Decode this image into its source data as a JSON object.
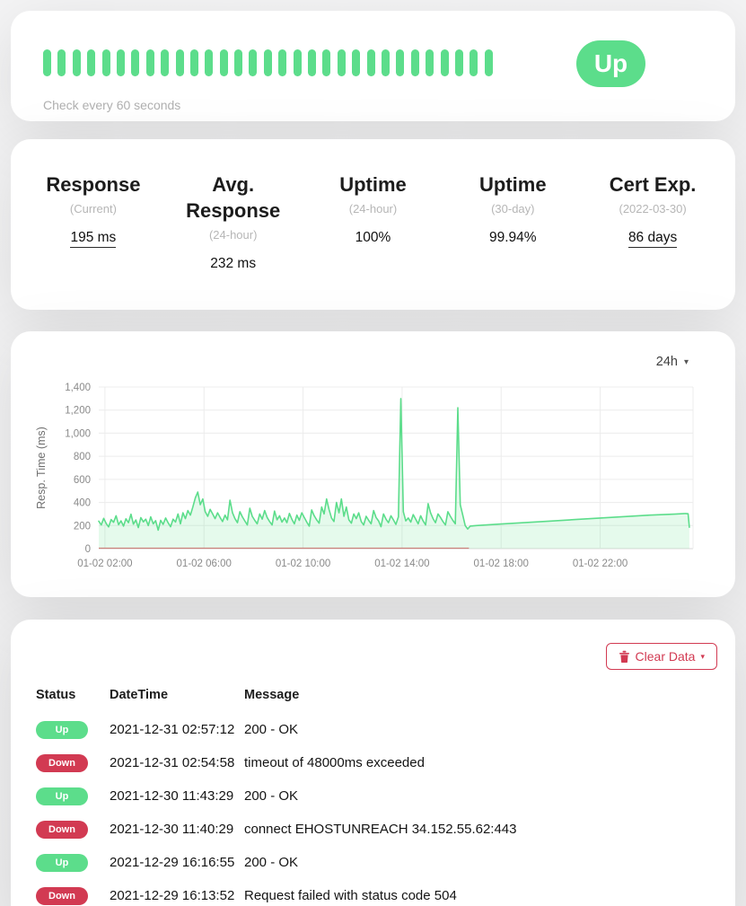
{
  "colors": {
    "up": "#5cdd8b",
    "down": "#d23a52",
    "chart_line": "#5cdd8b",
    "chart_fill": "rgba(92,221,139,0.16)",
    "down_line": "#c75f5c",
    "grid": "#ececec",
    "tick_text": "#8a8a8a"
  },
  "monitor": {
    "status_label": "Up",
    "check_interval_text": "Check every 60 seconds",
    "heartbeats": [
      "up",
      "up",
      "up",
      "up",
      "up",
      "up",
      "up",
      "up",
      "up",
      "up",
      "up",
      "up",
      "up",
      "up",
      "up",
      "up",
      "up",
      "up",
      "up",
      "up",
      "up",
      "up",
      "up",
      "up",
      "up",
      "up",
      "up",
      "up",
      "up",
      "up",
      "up"
    ]
  },
  "stats": {
    "items": [
      {
        "title": "Response",
        "subtitle": "(Current)",
        "value": "195 ms",
        "underline": true
      },
      {
        "title": "Avg. Response",
        "subtitle": "(24-hour)",
        "value": "232 ms",
        "underline": false
      },
      {
        "title": "Uptime",
        "subtitle": "(24-hour)",
        "value": "100%",
        "underline": false
      },
      {
        "title": "Uptime",
        "subtitle": "(30-day)",
        "value": "99.94%",
        "underline": false
      },
      {
        "title": "Cert Exp.",
        "subtitle": "(2022-03-30)",
        "value": "86 days",
        "underline": true
      }
    ]
  },
  "chart": {
    "period_label": "24h",
    "caret": "▾"
  },
  "chart_data": {
    "type": "area",
    "title": "",
    "ylabel": "Resp. Time (ms)",
    "xlabel": "",
    "xlim": [
      1.75,
      25.75
    ],
    "ylim": [
      0,
      1400
    ],
    "grid": true,
    "legend": "none",
    "xticks": [
      {
        "t": 2,
        "label": "01-02 02:00"
      },
      {
        "t": 6,
        "label": "01-02 06:00"
      },
      {
        "t": 10,
        "label": "01-02 10:00"
      },
      {
        "t": 14,
        "label": "01-02 14:00"
      },
      {
        "t": 18,
        "label": "01-02 18:00"
      },
      {
        "t": 22,
        "label": "01-02 22:00"
      }
    ],
    "yticks": [
      {
        "v": 0,
        "label": "0"
      },
      {
        "v": 200,
        "label": "200"
      },
      {
        "v": 400,
        "label": "400"
      },
      {
        "v": 600,
        "label": "600"
      },
      {
        "v": 800,
        "label": "800"
      },
      {
        "v": 1000,
        "label": "1,000"
      },
      {
        "v": 1200,
        "label": "1,200"
      },
      {
        "v": 1400,
        "label": "1,400"
      }
    ],
    "series_name": "Response time (ms)",
    "noisy_t0": 1.75,
    "noisy_dt": 0.1,
    "noisy_values": [
      238,
      205,
      262,
      218,
      188,
      252,
      228,
      285,
      208,
      240,
      195,
      258,
      225,
      298,
      212,
      248,
      182,
      268,
      232,
      255,
      200,
      275,
      215,
      242,
      160,
      245,
      210,
      265,
      225,
      190,
      255,
      230,
      300,
      215,
      310,
      260,
      330,
      290,
      360,
      440,
      490,
      380,
      430,
      320,
      280,
      340,
      300,
      260,
      310,
      270,
      235,
      290,
      250,
      420,
      310,
      260,
      225,
      320,
      275,
      240,
      205,
      350,
      280,
      245,
      215,
      300,
      255,
      330,
      270,
      235,
      205,
      325,
      250,
      285,
      230,
      265,
      225,
      305,
      255,
      215,
      290,
      245,
      310,
      270,
      230,
      195,
      335,
      285,
      250,
      220,
      360,
      300,
      430,
      340,
      265,
      235,
      400,
      310,
      430,
      280,
      360,
      250,
      220,
      300,
      260,
      310,
      235,
      205,
      280,
      245,
      215,
      330,
      270,
      240,
      190,
      300,
      255,
      225,
      285,
      250,
      210,
      275,
      1300,
      320,
      240,
      265,
      230,
      295,
      255,
      215,
      285,
      240,
      205,
      390,
      310,
      260,
      225,
      300,
      270,
      235,
      205,
      320,
      280,
      245,
      215,
      1220,
      380,
      290,
      200,
      170
    ],
    "tail_points": [
      [
        16.75,
        195
      ],
      [
        17,
        200
      ],
      [
        18,
        213
      ],
      [
        19,
        226
      ],
      [
        20,
        239
      ],
      [
        21,
        252
      ],
      [
        22,
        265
      ],
      [
        23,
        278
      ],
      [
        24,
        290
      ],
      [
        25,
        299
      ],
      [
        25.45,
        304
      ],
      [
        25.55,
        302
      ],
      [
        25.6,
        185
      ]
    ],
    "down_series": {
      "value": 0,
      "t_start": 1.75,
      "t_end": 16.7
    }
  },
  "events": {
    "clear_button_label": "Clear Data",
    "clear_button_caret": "▾",
    "columns": [
      "Status",
      "DateTime",
      "Message"
    ],
    "rows": [
      {
        "status": "Up",
        "datetime": "2021-12-31 02:57:12",
        "message": "200 - OK"
      },
      {
        "status": "Down",
        "datetime": "2021-12-31 02:54:58",
        "message": "timeout of 48000ms exceeded"
      },
      {
        "status": "Up",
        "datetime": "2021-12-30 11:43:29",
        "message": "200 - OK"
      },
      {
        "status": "Down",
        "datetime": "2021-12-30 11:40:29",
        "message": "connect EHOSTUNREACH 34.152.55.62:443"
      },
      {
        "status": "Up",
        "datetime": "2021-12-29 16:16:55",
        "message": "200 - OK"
      },
      {
        "status": "Down",
        "datetime": "2021-12-29 16:13:52",
        "message": "Request failed with status code 504"
      }
    ]
  }
}
